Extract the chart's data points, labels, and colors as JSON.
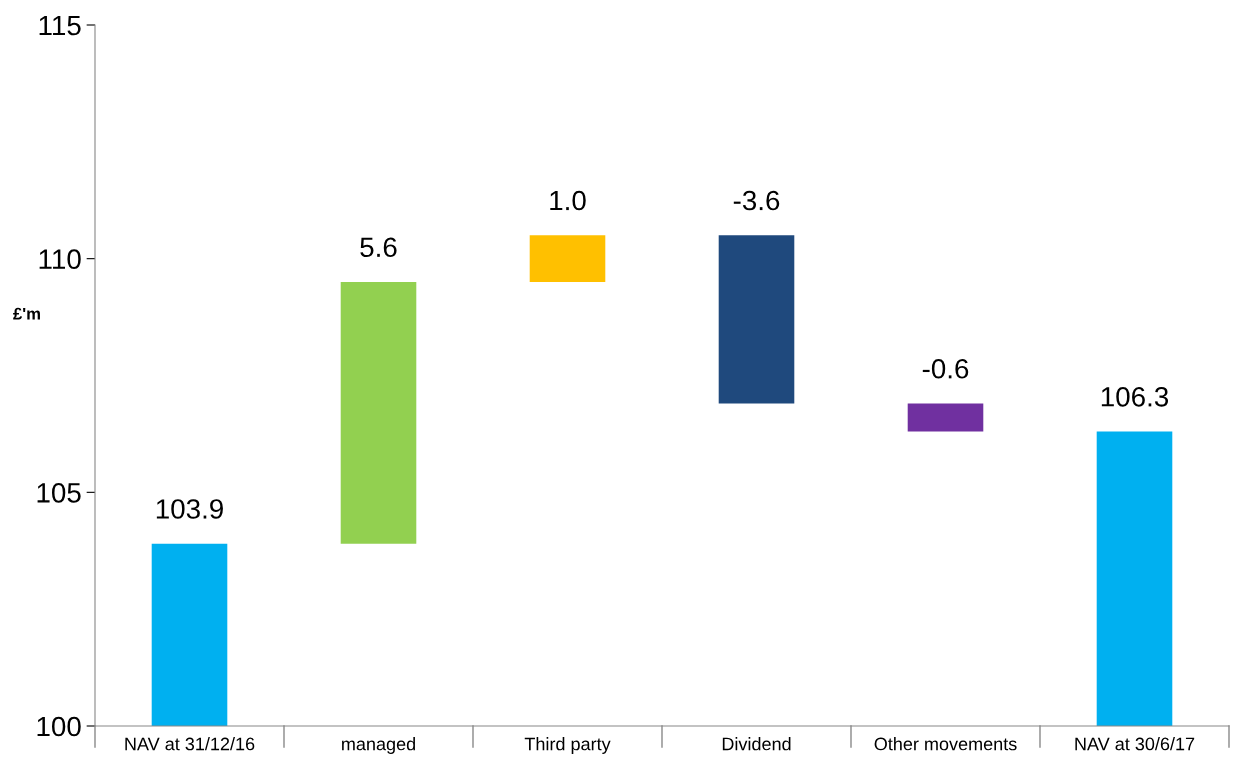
{
  "chart_data": {
    "type": "bar",
    "ylabel": "£'m",
    "categories": [
      "NAV at 31/12/16",
      "managed",
      "Third party",
      "Dividend",
      "Other movements",
      "NAV at 30/6/17"
    ],
    "values": [
      103.9,
      5.6,
      1.0,
      -3.6,
      -0.6,
      106.3
    ],
    "base": [
      null,
      103.9,
      109.5,
      110.5,
      106.9,
      null
    ],
    "colors": [
      "#00b0f0",
      "#92d050",
      "#ffc000",
      "#1f497d",
      "#7030a0",
      "#00b0f0"
    ],
    "value_labels": [
      "103.9",
      "5.6",
      "1.0",
      "-3.6",
      "-0.6",
      "106.3"
    ],
    "ylim": [
      100,
      115
    ],
    "yticks": [
      100,
      105,
      110,
      115
    ],
    "grid": false,
    "legend": false
  }
}
